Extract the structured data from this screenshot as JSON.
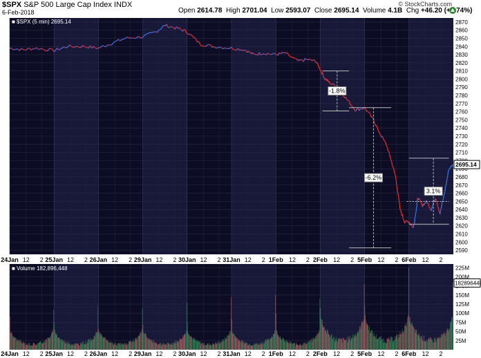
{
  "header": {
    "symbol": "$SPX",
    "name": "S&P 500 Large Cap Index",
    "exchange": "INDX",
    "date": "6-Feb-2018",
    "open_label": "Open",
    "open": "2614.78",
    "high_label": "High",
    "high": "2701.04",
    "low_label": "Low",
    "low": "2593.07",
    "close_label": "Close",
    "close": "2695.14",
    "volume_label": "Volume",
    "volume": "4.1B",
    "chg_label": "Chg",
    "chg": "+46.20 (+1.74%)",
    "brand": "© StockCharts.com",
    "arrow_icon": "up-arrow-icon"
  },
  "price_legend": "$SPX (5 min) 2695.14",
  "volume_legend": "Volume 182,896,448",
  "last_price_label": "2695.14",
  "last_volume_label": "182896448",
  "annotations": [
    {
      "text": "-1.8%"
    },
    {
      "text": "-6.2%"
    },
    {
      "text": "3.1%"
    }
  ],
  "chart_data": [
    {
      "type": "line",
      "title": "$SPX (5 min)",
      "series_name": "$SPX (5 min)",
      "ylim": [
        2585,
        2875
      ],
      "y_ticks": [
        2590,
        2600,
        2610,
        2620,
        2630,
        2640,
        2650,
        2660,
        2670,
        2680,
        2690,
        2700,
        2710,
        2720,
        2730,
        2740,
        2750,
        2760,
        2770,
        2780,
        2790,
        2800,
        2810,
        2820,
        2830,
        2840,
        2850,
        2860,
        2870
      ],
      "x_tick_labels": [
        "24Jan",
        "12",
        "2",
        "25Jan",
        "12",
        "2",
        "26Jan",
        "12",
        "2",
        "29Jan",
        "12",
        "2",
        "30Jan",
        "12",
        "2",
        "31Jan",
        "12",
        "2",
        "1Feb",
        "12",
        "2",
        "2Feb",
        "12",
        "2",
        "5Feb",
        "12",
        "2",
        "6Feb",
        "12",
        "2"
      ],
      "x": [
        0,
        0.3,
        0.6,
        1,
        1.3,
        1.7,
        2,
        2.3,
        2.6,
        3,
        3.3,
        3.5,
        3.8,
        4,
        4.3,
        4.6,
        5,
        5.3,
        5.5,
        5.7,
        6,
        6.2,
        6.5,
        6.7,
        6.9,
        7,
        7.1,
        7.2,
        7.4,
        7.6,
        7.8,
        8,
        8.2,
        8.3,
        8.5,
        8.6,
        8.7,
        8.8,
        8.9,
        9,
        9.1,
        9.15,
        9.2,
        9.3,
        9.4,
        9.5,
        9.6,
        9.7,
        9.8,
        9.9,
        10
      ],
      "values": [
        2838,
        2836,
        2838,
        2835,
        2840,
        2840,
        2838,
        2844,
        2850,
        2852,
        2858,
        2866,
        2862,
        2858,
        2843,
        2840,
        2838,
        2836,
        2830,
        2832,
        2830,
        2832,
        2822,
        2824,
        2822,
        2812,
        2801,
        2796,
        2790,
        2775,
        2762,
        2765,
        2750,
        2738,
        2718,
        2700,
        2680,
        2640,
        2625,
        2625,
        2618,
        2635,
        2655,
        2645,
        2650,
        2640,
        2655,
        2635,
        2660,
        2690,
        2695
      ],
      "trend_levels": [
        {
          "label": "-1.8%",
          "from": 2810,
          "to": 2761
        },
        {
          "label": "-6.2%",
          "from": 2765,
          "to": 2593
        },
        {
          "label": "3.1%",
          "from": 2622,
          "to": 2703
        }
      ]
    },
    {
      "type": "bar",
      "title": "Volume",
      "series_name": "Volume",
      "ylim": [
        0,
        235
      ],
      "y_tick_labels": [
        "25M",
        "50M",
        "75M",
        "100M",
        "125M",
        "150M",
        "175M",
        "200M",
        "225M"
      ],
      "y_ticks": [
        25,
        50,
        75,
        100,
        125,
        150,
        175,
        200,
        225
      ],
      "session_spikes_M": [
        150,
        110,
        125,
        120,
        95,
        115,
        115,
        130,
        125,
        145,
        140,
        150,
        165,
        140,
        190,
        180,
        200,
        225,
        150,
        183
      ],
      "last_value": 182896448
    }
  ]
}
